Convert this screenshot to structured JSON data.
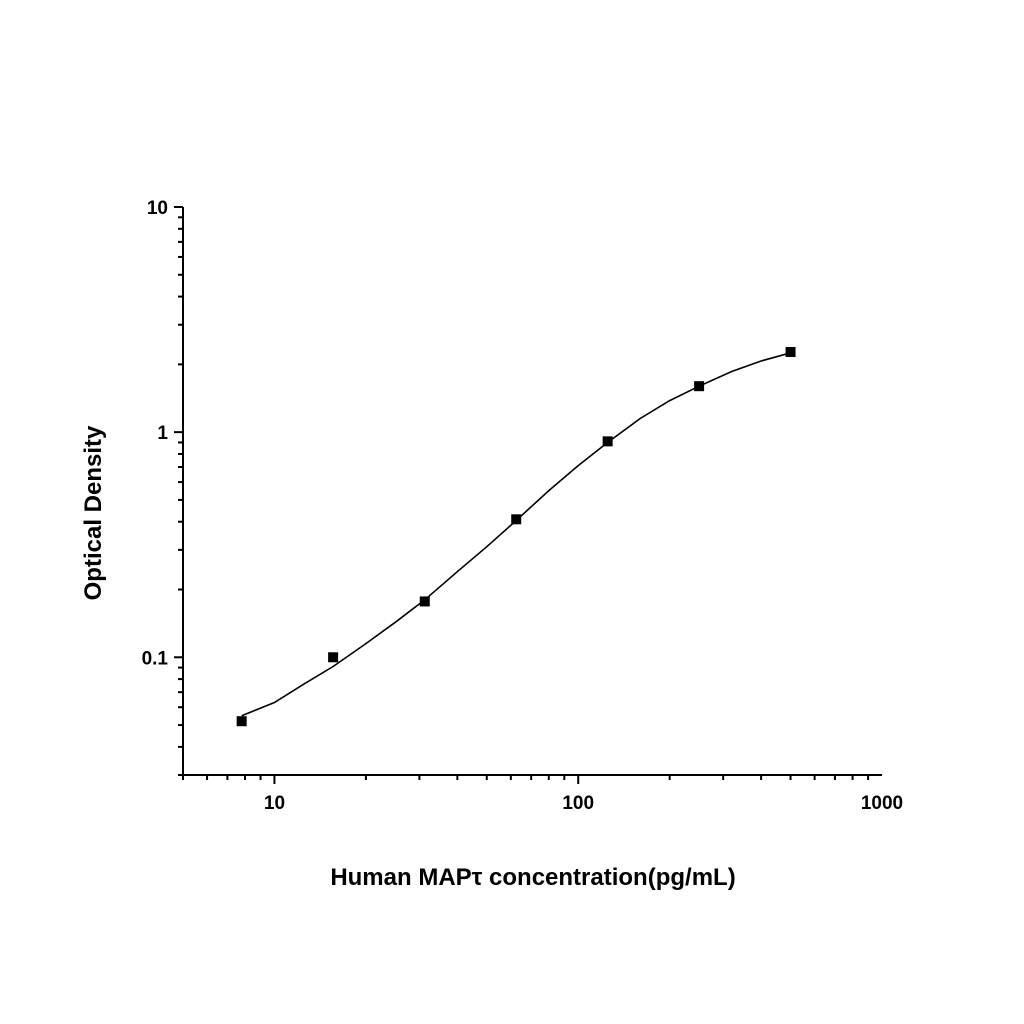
{
  "chart_data": {
    "type": "scatter",
    "x_scale": "log",
    "y_scale": "log",
    "xlabel": "Human MAPτ   concentration(pg/mL)",
    "ylabel": "Optical Density",
    "xlim": [
      5,
      1000
    ],
    "ylim": [
      0.03,
      10
    ],
    "x_ticks": [
      {
        "value": 10,
        "label": "10"
      },
      {
        "value": 100,
        "label": "100"
      },
      {
        "value": 1000,
        "label": "1000"
      }
    ],
    "y_ticks": [
      {
        "value": 0.1,
        "label": "0.1"
      },
      {
        "value": 1,
        "label": "1"
      },
      {
        "value": 10,
        "label": "10"
      }
    ],
    "grid": false,
    "legend": "none",
    "marker_color": "#000000",
    "line_color": "#000000",
    "series": [
      {
        "style": "markers",
        "points": [
          {
            "x": 7.8,
            "y": 0.052
          },
          {
            "x": 15.6,
            "y": 0.1
          },
          {
            "x": 31.25,
            "y": 0.177
          },
          {
            "x": 62.5,
            "y": 0.41
          },
          {
            "x": 125,
            "y": 0.91
          },
          {
            "x": 250,
            "y": 1.6
          },
          {
            "x": 500,
            "y": 2.27
          }
        ]
      },
      {
        "style": "fitted-curve",
        "points": [
          {
            "x": 7.8,
            "y": 0.055
          },
          {
            "x": 10,
            "y": 0.063
          },
          {
            "x": 12.5,
            "y": 0.076
          },
          {
            "x": 15.6,
            "y": 0.091
          },
          {
            "x": 20,
            "y": 0.115
          },
          {
            "x": 25,
            "y": 0.143
          },
          {
            "x": 31.25,
            "y": 0.18
          },
          {
            "x": 40,
            "y": 0.24
          },
          {
            "x": 50,
            "y": 0.31
          },
          {
            "x": 62.5,
            "y": 0.405
          },
          {
            "x": 80,
            "y": 0.55
          },
          {
            "x": 100,
            "y": 0.71
          },
          {
            "x": 125,
            "y": 0.9
          },
          {
            "x": 160,
            "y": 1.15
          },
          {
            "x": 200,
            "y": 1.38
          },
          {
            "x": 250,
            "y": 1.6
          },
          {
            "x": 320,
            "y": 1.86
          },
          {
            "x": 400,
            "y": 2.07
          },
          {
            "x": 500,
            "y": 2.25
          }
        ]
      }
    ]
  }
}
